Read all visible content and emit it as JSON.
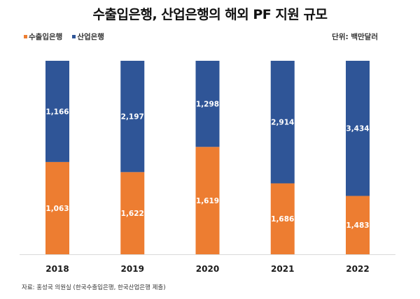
{
  "chart_data": {
    "type": "bar",
    "stacked": "percent",
    "title": "수출입은행, 산업은행의 해외 PF 지원 규모",
    "unit_label": "단위: 백만달러",
    "categories": [
      "2018",
      "2019",
      "2020",
      "2021",
      "2022"
    ],
    "series": [
      {
        "name": "수출입은행",
        "color": "#ED7D31",
        "values": [
          1063,
          1622,
          1619,
          1686,
          1483
        ],
        "labels": [
          "1,063",
          "1,622",
          "1,619",
          "1,686",
          "1,483"
        ]
      },
      {
        "name": "산업은행",
        "color": "#2F5597",
        "values": [
          1166,
          2197,
          1298,
          2914,
          3434
        ],
        "labels": [
          "1,166",
          "2,197",
          "1,298",
          "2,914",
          "3,434"
        ]
      }
    ],
    "xlabel": "",
    "ylabel": "",
    "ylim": [
      0,
      100
    ],
    "grid": false,
    "legend_position": "top-left",
    "source": "자료: 홍성국 의원실 (한국수출입은행, 한국산업은행 제출)"
  }
}
